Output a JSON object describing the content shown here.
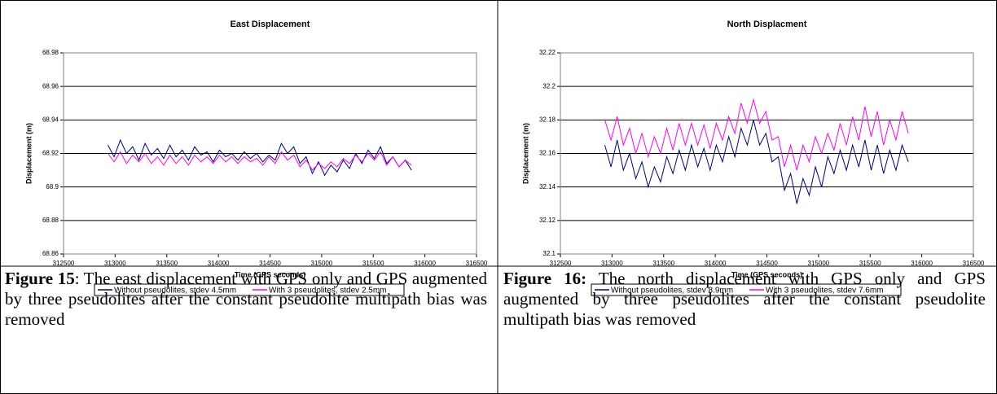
{
  "chart_data": [
    {
      "type": "line",
      "title": "East Displacement",
      "x_label": "Time (GPS seconds)",
      "y_label": "Displacement (m)",
      "x": [
        312930,
        312990,
        313050,
        313110,
        313170,
        313230,
        313290,
        313350,
        313410,
        313470,
        313530,
        313590,
        313650,
        313710,
        313770,
        313830,
        313890,
        313950,
        314010,
        314070,
        314130,
        314190,
        314250,
        314310,
        314370,
        314430,
        314490,
        314550,
        314610,
        314670,
        314730,
        314790,
        314850,
        314910,
        314970,
        315030,
        315090,
        315150,
        315210,
        315270,
        315330,
        315390,
        315450,
        315510,
        315570,
        315630,
        315690,
        315750,
        315810,
        315870
      ],
      "series": [
        {
          "name": "Without pseudolites, stdev 4.5mm",
          "color": "#000080",
          "values": [
            68.925,
            68.918,
            68.928,
            68.92,
            68.924,
            68.916,
            68.926,
            68.919,
            68.923,
            68.917,
            68.925,
            68.918,
            68.922,
            68.916,
            68.924,
            68.919,
            68.921,
            68.915,
            68.922,
            68.918,
            68.92,
            68.916,
            68.921,
            68.917,
            68.92,
            68.915,
            68.919,
            68.916,
            68.926,
            68.92,
            68.924,
            68.914,
            68.918,
            68.908,
            68.915,
            68.907,
            68.913,
            68.909,
            68.916,
            68.911,
            68.92,
            68.914,
            68.922,
            68.917,
            68.924,
            68.914,
            68.918,
            68.912,
            68.916,
            68.91
          ]
        },
        {
          "name": "With 3 pseudolites, stdev 2.5mm",
          "color": "#ff00ff",
          "values": [
            68.92,
            68.915,
            68.921,
            68.914,
            68.919,
            68.915,
            68.92,
            68.914,
            68.918,
            68.913,
            68.919,
            68.914,
            68.918,
            68.913,
            68.919,
            68.915,
            68.918,
            68.914,
            68.919,
            68.915,
            68.918,
            68.914,
            68.918,
            68.915,
            68.917,
            68.913,
            68.918,
            68.914,
            68.921,
            68.916,
            68.919,
            68.912,
            68.916,
            68.91,
            68.914,
            68.911,
            68.915,
            68.912,
            68.917,
            68.914,
            68.919,
            68.915,
            68.92,
            68.916,
            68.921,
            68.913,
            68.918,
            68.912,
            68.916,
            68.913
          ]
        }
      ],
      "xlim": [
        312500,
        316500
      ],
      "xticks": [
        312500,
        313000,
        313500,
        314000,
        314500,
        315000,
        315500,
        316000,
        316500
      ],
      "ylim": [
        68.86,
        68.98
      ],
      "yticks": [
        68.86,
        68.88,
        68.9,
        68.92,
        68.94,
        68.96,
        68.98
      ],
      "grid": true,
      "legend": "bottom"
    },
    {
      "type": "line",
      "title": "North Displacment",
      "x_label": "Time (GPS seconds)",
      "y_label": "Displacement (m)",
      "x": [
        312930,
        312990,
        313050,
        313110,
        313170,
        313230,
        313290,
        313350,
        313410,
        313470,
        313530,
        313590,
        313650,
        313710,
        313770,
        313830,
        313890,
        313950,
        314010,
        314070,
        314130,
        314190,
        314250,
        314310,
        314370,
        314430,
        314490,
        314550,
        314610,
        314670,
        314730,
        314790,
        314850,
        314910,
        314970,
        315030,
        315090,
        315150,
        315210,
        315270,
        315330,
        315390,
        315450,
        315510,
        315570,
        315630,
        315690,
        315750,
        315810,
        315870
      ],
      "series": [
        {
          "name": "Without pseudolites, stdev 8.9mm",
          "color": "#000080",
          "values": [
            32.165,
            32.152,
            32.168,
            32.15,
            32.16,
            32.145,
            32.155,
            32.14,
            32.152,
            32.143,
            32.158,
            32.148,
            32.162,
            32.15,
            32.165,
            32.152,
            32.163,
            32.15,
            32.165,
            32.155,
            32.17,
            32.158,
            32.175,
            32.165,
            32.18,
            32.165,
            32.172,
            32.155,
            32.158,
            32.138,
            32.148,
            32.13,
            32.145,
            32.135,
            32.152,
            32.14,
            32.158,
            32.148,
            32.162,
            32.15,
            32.165,
            32.152,
            32.168,
            32.15,
            32.165,
            32.148,
            32.162,
            32.15,
            32.165,
            32.155
          ]
        },
        {
          "name": "With 3 pseudolites, stdev 7.6mm",
          "color": "#ff00ff",
          "values": [
            32.18,
            32.168,
            32.182,
            32.165,
            32.175,
            32.16,
            32.172,
            32.158,
            32.17,
            32.16,
            32.175,
            32.162,
            32.178,
            32.165,
            32.178,
            32.165,
            32.177,
            32.163,
            32.178,
            32.168,
            32.182,
            32.172,
            32.19,
            32.178,
            32.192,
            32.178,
            32.185,
            32.168,
            32.17,
            32.152,
            32.165,
            32.15,
            32.165,
            32.155,
            32.17,
            32.16,
            32.172,
            32.162,
            32.178,
            32.165,
            32.182,
            32.168,
            32.188,
            32.17,
            32.185,
            32.165,
            32.18,
            32.168,
            32.185,
            32.172
          ]
        }
      ],
      "xlim": [
        312500,
        316500
      ],
      "xticks": [
        312500,
        313000,
        313500,
        314000,
        314500,
        315000,
        315500,
        316000,
        316500
      ],
      "ylim": [
        32.1,
        32.22
      ],
      "yticks": [
        32.1,
        32.12,
        32.14,
        32.16,
        32.18,
        32.2,
        32.22
      ],
      "grid": true,
      "legend": "bottom"
    }
  ],
  "captions": [
    {
      "label": "Figure 15",
      "text": ": The east displacement with GPS only and GPS augmented by three pseudolites after the constant pseudolite multipath bias was removed"
    },
    {
      "label": "Figure 16:",
      "text": " The north displacement with GPS only and GPS augmented by three pseudolites after the constant pseudolite multipath bias was removed"
    }
  ]
}
